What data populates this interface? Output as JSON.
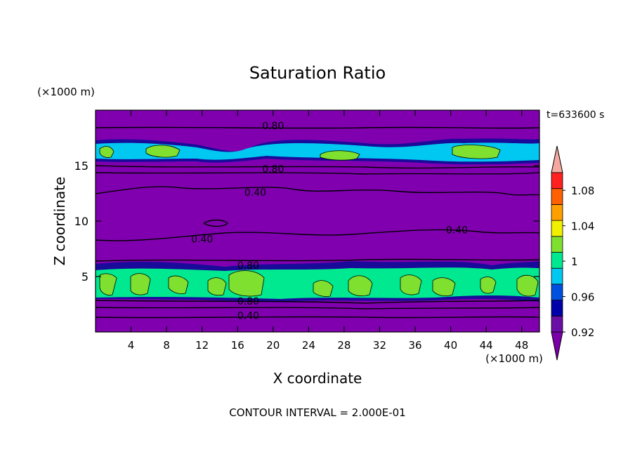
{
  "chart_data": {
    "type": "heatmap",
    "title": "Saturation Ratio",
    "time_label": "t=633600 s",
    "xlabel": "X coordinate",
    "ylabel": "Z coordinate",
    "x_unit": "(×1000 m)",
    "y_unit": "(×1000 m)",
    "xlim": [
      0,
      50
    ],
    "ylim": [
      0,
      20
    ],
    "xticks": [
      4,
      8,
      12,
      16,
      20,
      24,
      28,
      32,
      36,
      40,
      44,
      48
    ],
    "yticks": [
      5,
      10,
      15
    ],
    "footer": "CONTOUR INTERVAL = 2.000E-01",
    "colorbar": {
      "levels": [
        0.92,
        0.94,
        0.96,
        0.98,
        1.0,
        1.02,
        1.04,
        1.06,
        1.08,
        1.1
      ],
      "labels": [
        "0.92",
        "0.96",
        "1",
        "1.04",
        "1.08"
      ],
      "label_values": [
        0.92,
        0.96,
        1.0,
        1.04,
        1.08
      ],
      "under_color": "#7b00a8",
      "over_color": "#f4a8a0",
      "colors": [
        "#6a0fa5",
        "#0000a8",
        "#0050e0",
        "#00c8f0",
        "#00e890",
        "#80e030",
        "#f0f000",
        "#ffa000",
        "#ff6000",
        "#ff2020"
      ]
    },
    "background_color": "#8000b0",
    "contour_labels": [
      {
        "text": "0.80",
        "x": 20,
        "z": 18.6
      },
      {
        "text": "0.80",
        "x": 20,
        "z": 14.7
      },
      {
        "text": "0.40",
        "x": 18,
        "z": 12.6
      },
      {
        "text": "0.40",
        "x": 40.7,
        "z": 9.2
      },
      {
        "text": "0.40",
        "x": 12,
        "z": 8.4
      },
      {
        "text": "0.80",
        "x": 17.2,
        "z": 6.0
      },
      {
        "text": "0.80",
        "x": 17.2,
        "z": 2.8
      },
      {
        "text": "0.40",
        "x": 17.2,
        "z": 1.5
      }
    ]
  }
}
